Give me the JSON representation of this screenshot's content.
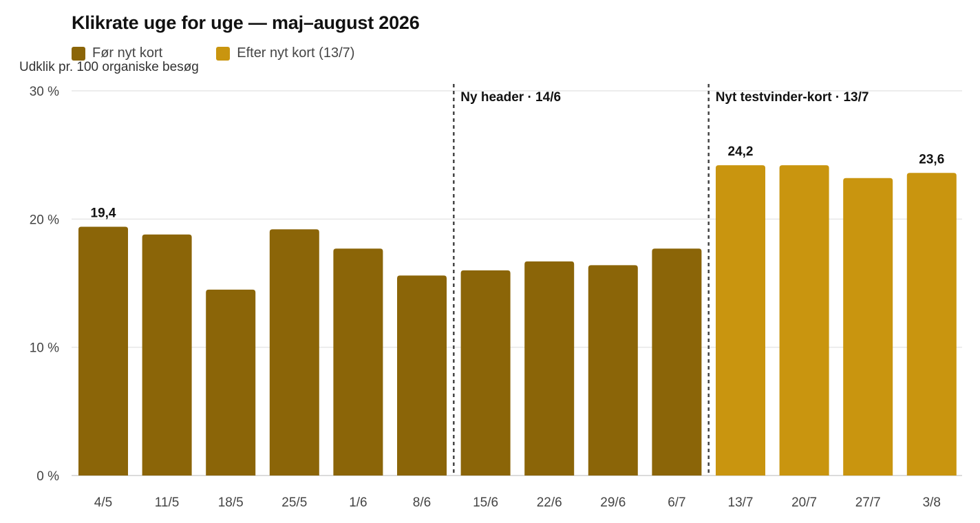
{
  "chart_data": {
    "type": "bar",
    "title": "Klikrate uge for uge — maj–august 2026",
    "ylabel": "Udklik pr. 100 organiske besøg",
    "ylim": [
      0,
      30
    ],
    "yticks": [
      {
        "value": 0,
        "label": "0 %"
      },
      {
        "value": 10,
        "label": "10 %"
      },
      {
        "value": 20,
        "label": "20 %"
      },
      {
        "value": 30,
        "label": "30 %"
      }
    ],
    "grid": true,
    "legend_position": "top-left",
    "categories": [
      "4/5",
      "11/5",
      "18/5",
      "25/5",
      "1/6",
      "8/6",
      "15/6",
      "22/6",
      "29/6",
      "6/7",
      "13/7",
      "20/7",
      "27/7",
      "3/8"
    ],
    "series": [
      {
        "name": "Før nyt kort",
        "color": "#8B6508",
        "values": [
          19.4,
          18.8,
          14.5,
          19.2,
          17.7,
          15.6,
          16.0,
          16.7,
          16.4,
          17.7,
          null,
          null,
          null,
          null
        ]
      },
      {
        "name": "Efter nyt kort (13/7)",
        "color": "#C9950F",
        "values": [
          null,
          null,
          null,
          null,
          null,
          null,
          null,
          null,
          null,
          null,
          24.2,
          24.2,
          23.2,
          23.6
        ]
      }
    ],
    "data_labels": [
      {
        "category": "4/5",
        "text": "19,4"
      },
      {
        "category": "13/7",
        "text": "24,2"
      },
      {
        "category": "3/8",
        "text": "23,6"
      }
    ],
    "annotations": [
      {
        "between": [
          "8/6",
          "15/6"
        ],
        "text": "Ny header · 14/6"
      },
      {
        "between": [
          "6/7",
          "13/7"
        ],
        "text": "Nyt testvinder-kort · 13/7"
      }
    ]
  }
}
